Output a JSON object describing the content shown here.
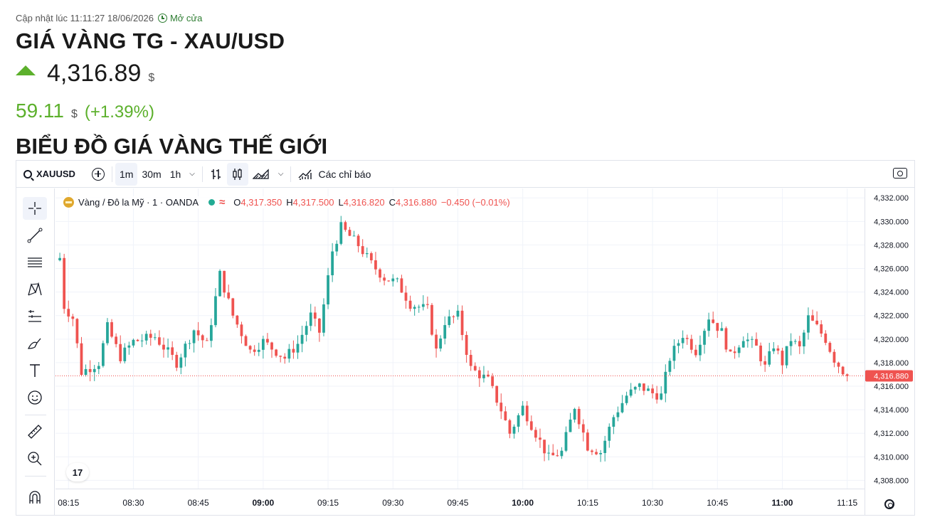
{
  "header": {
    "updated_text": "Cập nhật lúc 11:11:27 18/06/2026",
    "market_status": "Mở cửa",
    "title": "GIÁ VÀNG TG - XAU/USD",
    "price": "4,316.89",
    "price_currency": "$",
    "change": "59.11",
    "change_currency": "$",
    "change_pct": "(+1.39%)",
    "section_title": "BIỂU ĐỒ GIÁ VÀNG THẾ GIỚI"
  },
  "toolbar": {
    "symbol": "XAUUSD",
    "intervals": [
      "1m",
      "30m",
      "1h"
    ],
    "active_interval": "1m",
    "indicators_label": "Các chỉ báo"
  },
  "legend": {
    "name": "Vàng / Đô la Mỹ · 1 · OANDA",
    "o_label": "O",
    "o_value": "4,317.350",
    "h_label": "H",
    "h_value": "4,317.500",
    "l_label": "L",
    "l_value": "4,316.820",
    "c_label": "C",
    "c_value": "4,316.880",
    "change": "−0.450 (−0.01%)"
  },
  "sidebar_tools": [
    "crosshair-icon",
    "trend-line-icon",
    "fib-icon",
    "pattern-icon",
    "measure-lines-icon",
    "brush-icon",
    "text-icon",
    "emoji-icon",
    "ruler-icon",
    "zoom-in-icon",
    "magnet-icon"
  ],
  "colors": {
    "up": "#26a69a",
    "down": "#ef5350",
    "brand_green": "#5cb02c",
    "grid": "#f0f3fa"
  },
  "chart_data": {
    "type": "candlestick",
    "symbol": "XAUUSD",
    "interval": "1m",
    "current_price": "4,316.880",
    "x_tick_labels": [
      "08:15",
      "08:30",
      "08:45",
      "09:00",
      "09:15",
      "09:30",
      "09:45",
      "10:00",
      "10:15",
      "10:30",
      "10:45",
      "11:00",
      "11:15"
    ],
    "bold_ticks": [
      "09:00",
      "10:00",
      "11:00"
    ],
    "y_tick_labels": [
      "4,332.000",
      "4,330.000",
      "4,328.000",
      "4,326.000",
      "4,324.000",
      "4,322.000",
      "4,320.000",
      "4,318.000",
      "4,316.000",
      "4,314.000",
      "4,312.000",
      "4,310.000",
      "4,308.000"
    ],
    "ylim": [
      4307.3,
      4332.8
    ],
    "x_range_minutes": [
      492,
      679
    ],
    "axis_position": "right",
    "grid": true,
    "anchors": [
      {
        "t": 493,
        "v": 4326.9
      },
      {
        "t": 494,
        "v": 4322.8
      },
      {
        "t": 496,
        "v": 4321.8
      },
      {
        "t": 498,
        "v": 4317.2
      },
      {
        "t": 502,
        "v": 4318.0
      },
      {
        "t": 504,
        "v": 4321.0
      },
      {
        "t": 507,
        "v": 4318.5
      },
      {
        "t": 510,
        "v": 4319.8
      },
      {
        "t": 515,
        "v": 4320.2
      },
      {
        "t": 520,
        "v": 4318.0
      },
      {
        "t": 524,
        "v": 4320.8
      },
      {
        "t": 527,
        "v": 4319.5
      },
      {
        "t": 530,
        "v": 4325.5
      },
      {
        "t": 533,
        "v": 4322.0
      },
      {
        "t": 537,
        "v": 4319.0
      },
      {
        "t": 540,
        "v": 4319.8
      },
      {
        "t": 545,
        "v": 4318.4
      },
      {
        "t": 548,
        "v": 4319.6
      },
      {
        "t": 551,
        "v": 4322.0
      },
      {
        "t": 553,
        "v": 4320.6
      },
      {
        "t": 556,
        "v": 4327.5
      },
      {
        "t": 558,
        "v": 4329.5
      },
      {
        "t": 562,
        "v": 4328.0
      },
      {
        "t": 565,
        "v": 4326.4
      },
      {
        "t": 568,
        "v": 4325.2
      },
      {
        "t": 571,
        "v": 4324.8
      },
      {
        "t": 574,
        "v": 4323.0
      },
      {
        "t": 578,
        "v": 4322.5
      },
      {
        "t": 580,
        "v": 4319.0
      },
      {
        "t": 582,
        "v": 4321.5
      },
      {
        "t": 585,
        "v": 4322.0
      },
      {
        "t": 588,
        "v": 4317.5
      },
      {
        "t": 592,
        "v": 4316.5
      },
      {
        "t": 595,
        "v": 4314.0
      },
      {
        "t": 597,
        "v": 4312.0
      },
      {
        "t": 600,
        "v": 4314.2
      },
      {
        "t": 603,
        "v": 4312.0
      },
      {
        "t": 606,
        "v": 4309.9
      },
      {
        "t": 609,
        "v": 4310.4
      },
      {
        "t": 612,
        "v": 4314.3
      },
      {
        "t": 615,
        "v": 4310.9
      },
      {
        "t": 618,
        "v": 4310.4
      },
      {
        "t": 621,
        "v": 4313.4
      },
      {
        "t": 624,
        "v": 4315.2
      },
      {
        "t": 627,
        "v": 4316.0
      },
      {
        "t": 630,
        "v": 4315.4
      },
      {
        "t": 632,
        "v": 4315.2
      },
      {
        "t": 634,
        "v": 4318.4
      },
      {
        "t": 637,
        "v": 4320.4
      },
      {
        "t": 640,
        "v": 4319.0
      },
      {
        "t": 643,
        "v": 4321.9
      },
      {
        "t": 646,
        "v": 4320.6
      },
      {
        "t": 648,
        "v": 4318.5
      },
      {
        "t": 651,
        "v": 4320.2
      },
      {
        "t": 654,
        "v": 4319.3
      },
      {
        "t": 656,
        "v": 4317.6
      },
      {
        "t": 658,
        "v": 4319.5
      },
      {
        "t": 660,
        "v": 4318.0
      },
      {
        "t": 662,
        "v": 4320.0
      },
      {
        "t": 664,
        "v": 4319.2
      },
      {
        "t": 666,
        "v": 4321.8
      },
      {
        "t": 668,
        "v": 4321.0
      },
      {
        "t": 670,
        "v": 4320.0
      },
      {
        "t": 672,
        "v": 4318.3
      },
      {
        "t": 674,
        "v": 4317.3
      },
      {
        "t": 675,
        "v": 4316.88
      }
    ]
  }
}
